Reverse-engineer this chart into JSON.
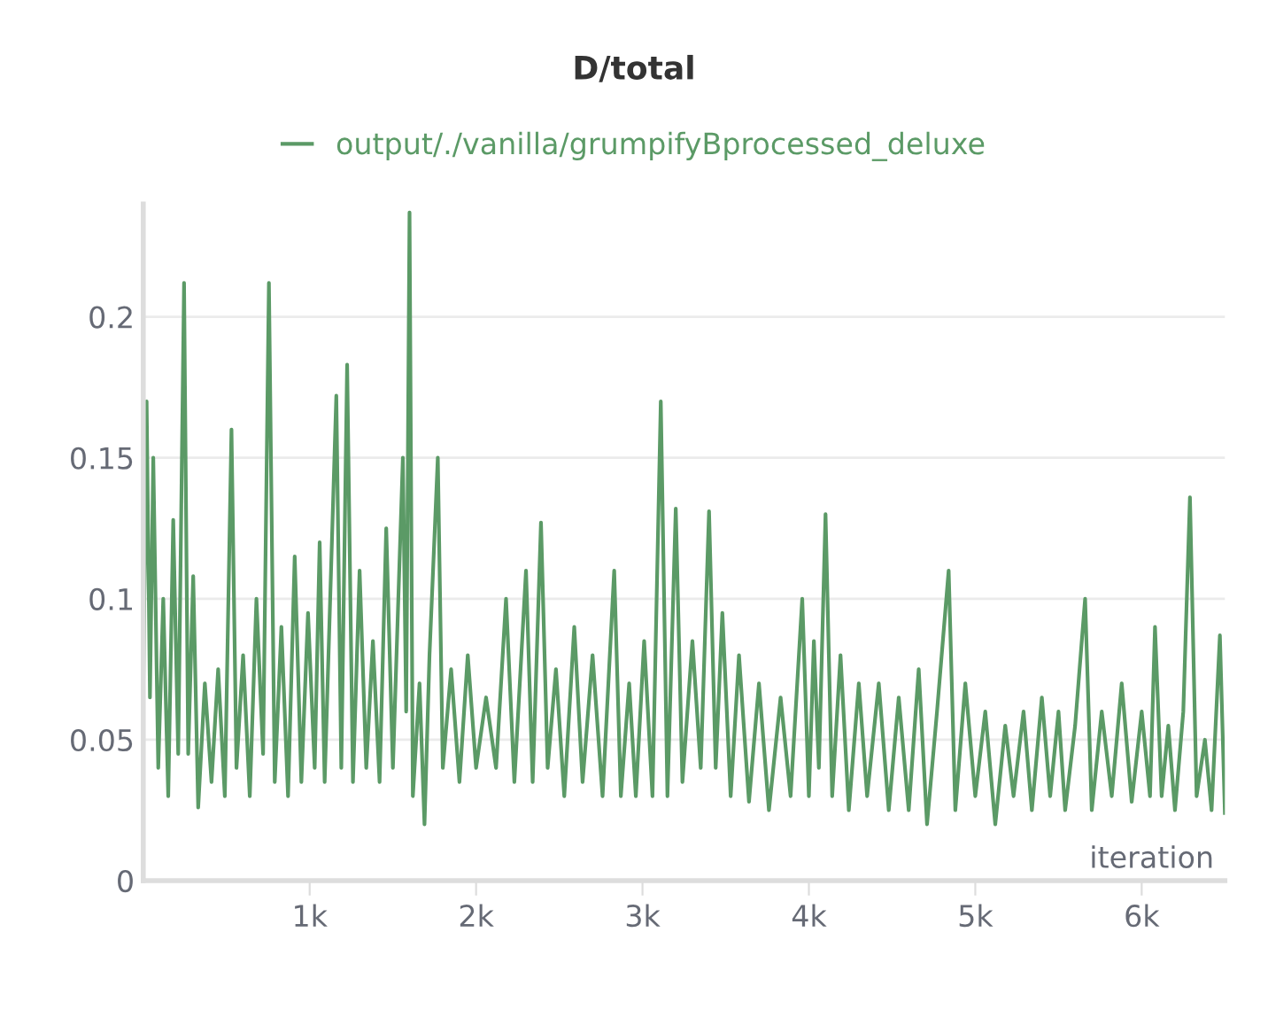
{
  "chart_data": {
    "type": "line",
    "title": "D/total",
    "xlabel": "iteration",
    "xlim": [
      0,
      6500
    ],
    "xticks": [
      {
        "value": 1000,
        "label": "1k"
      },
      {
        "value": 2000,
        "label": "2k"
      },
      {
        "value": 3000,
        "label": "3k"
      },
      {
        "value": 4000,
        "label": "4k"
      },
      {
        "value": 5000,
        "label": "5k"
      },
      {
        "value": 6000,
        "label": "6k"
      }
    ],
    "ylim": [
      0,
      0.24
    ],
    "yticks": [
      0,
      0.05,
      0.1,
      0.15,
      0.2
    ],
    "grid": "y",
    "legend": "top",
    "x": [
      0,
      20,
      40,
      60,
      90,
      120,
      150,
      180,
      210,
      245,
      270,
      300,
      330,
      370,
      410,
      450,
      490,
      530,
      560,
      600,
      640,
      680,
      720,
      755,
      790,
      830,
      870,
      910,
      950,
      990,
      1030,
      1060,
      1090,
      1160,
      1190,
      1225,
      1260,
      1300,
      1340,
      1380,
      1420,
      1460,
      1500,
      1560,
      1580,
      1600,
      1620,
      1660,
      1690,
      1720,
      1770,
      1800,
      1850,
      1900,
      1950,
      2000,
      2060,
      2120,
      2180,
      2230,
      2300,
      2340,
      2390,
      2430,
      2480,
      2530,
      2590,
      2640,
      2700,
      2760,
      2830,
      2870,
      2920,
      2960,
      3010,
      3060,
      3110,
      3150,
      3200,
      3240,
      3300,
      3350,
      3400,
      3440,
      3480,
      3530,
      3580,
      3640,
      3700,
      3760,
      3830,
      3890,
      3960,
      4000,
      4030,
      4060,
      4100,
      4140,
      4190,
      4240,
      4300,
      4350,
      4420,
      4480,
      4540,
      4600,
      4660,
      4710,
      4770,
      4840,
      4880,
      4940,
      5000,
      5060,
      5120,
      5180,
      5230,
      5290,
      5340,
      5400,
      5450,
      5500,
      5540,
      5600,
      5660,
      5700,
      5760,
      5820,
      5880,
      5940,
      6000,
      6050,
      6080,
      6120,
      6160,
      6200,
      6250,
      6290,
      6330,
      6380,
      6420,
      6470,
      6500
    ],
    "series": [
      {
        "name": "output/./vanilla/grumpifyBprocessed_deluxe",
        "color": "#5b9a66",
        "values": [
          0.068,
          0.17,
          0.065,
          0.15,
          0.04,
          0.1,
          0.03,
          0.128,
          0.045,
          0.212,
          0.045,
          0.108,
          0.026,
          0.07,
          0.035,
          0.075,
          0.03,
          0.16,
          0.04,
          0.08,
          0.03,
          0.1,
          0.045,
          0.212,
          0.035,
          0.09,
          0.03,
          0.115,
          0.035,
          0.095,
          0.04,
          0.12,
          0.035,
          0.172,
          0.04,
          0.183,
          0.035,
          0.11,
          0.04,
          0.085,
          0.035,
          0.125,
          0.04,
          0.15,
          0.06,
          0.237,
          0.03,
          0.07,
          0.02,
          0.08,
          0.15,
          0.04,
          0.075,
          0.035,
          0.08,
          0.04,
          0.065,
          0.04,
          0.1,
          0.035,
          0.11,
          0.035,
          0.127,
          0.04,
          0.075,
          0.03,
          0.09,
          0.035,
          0.08,
          0.03,
          0.11,
          0.03,
          0.07,
          0.03,
          0.085,
          0.03,
          0.17,
          0.03,
          0.132,
          0.035,
          0.085,
          0.04,
          0.131,
          0.04,
          0.095,
          0.03,
          0.08,
          0.028,
          0.07,
          0.025,
          0.065,
          0.03,
          0.1,
          0.03,
          0.085,
          0.04,
          0.13,
          0.03,
          0.08,
          0.025,
          0.07,
          0.03,
          0.07,
          0.025,
          0.065,
          0.025,
          0.075,
          0.02,
          0.06,
          0.11,
          0.025,
          0.07,
          0.03,
          0.06,
          0.02,
          0.055,
          0.03,
          0.06,
          0.025,
          0.065,
          0.03,
          0.06,
          0.025,
          0.055,
          0.1,
          0.025,
          0.06,
          0.03,
          0.07,
          0.028,
          0.06,
          0.03,
          0.09,
          0.03,
          0.055,
          0.025,
          0.06,
          0.136,
          0.03,
          0.05,
          0.025,
          0.087,
          0.024
        ]
      }
    ]
  }
}
